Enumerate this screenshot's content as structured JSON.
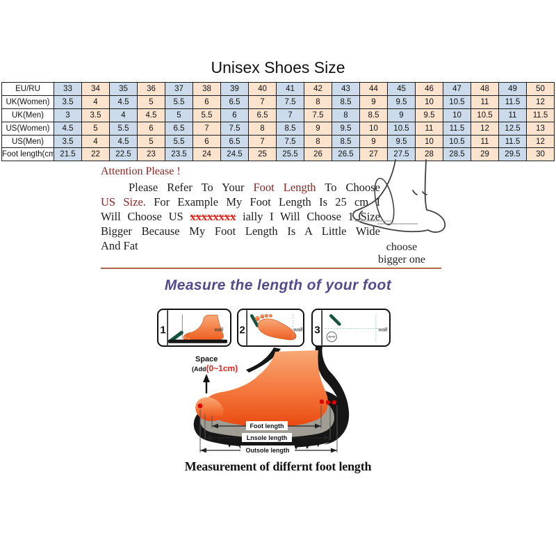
{
  "page": {
    "title": "Unisex Shoes Size"
  },
  "size_table": {
    "rows": [
      {
        "label": "EU/RU",
        "values": [
          "33",
          "34",
          "35",
          "36",
          "37",
          "38",
          "39",
          "40",
          "41",
          "42",
          "43",
          "44",
          "45",
          "46",
          "47",
          "48",
          "49",
          "50"
        ]
      },
      {
        "label": "UK(Women)",
        "values": [
          "3.5",
          "4",
          "4.5",
          "5",
          "5.5",
          "6",
          "6.5",
          "7",
          "7.5",
          "8",
          "8.5",
          "9",
          "9.5",
          "10",
          "10.5",
          "11",
          "11.5",
          "12"
        ]
      },
      {
        "label": "UK(Men)",
        "values": [
          "3",
          "3.5",
          "4",
          "4.5",
          "5",
          "5.5",
          "6",
          "6.5",
          "7",
          "7.5",
          "8",
          "8.5",
          "9",
          "9.5",
          "10",
          "10.5",
          "11",
          "11.5"
        ]
      },
      {
        "label": "US(Women)",
        "values": [
          "4.5",
          "5",
          "5.5",
          "6",
          "6.5",
          "7",
          "7.5",
          "8",
          "8.5",
          "9",
          "9.5",
          "10",
          "10.5",
          "11",
          "11.5",
          "12",
          "12.5",
          "13"
        ]
      },
      {
        "label": "US(Men)",
        "values": [
          "3.5",
          "4",
          "4.5",
          "5",
          "5.5",
          "6",
          "6.5",
          "7",
          "7.5",
          "8",
          "8.5",
          "9",
          "9.5",
          "10",
          "10.5",
          "11",
          "11.5",
          "12"
        ]
      },
      {
        "label": "Foot length(cm)",
        "values": [
          "21.5",
          "22",
          "22.5",
          "23",
          "23.5",
          "24",
          "24.5",
          "25",
          "25.5",
          "26",
          "26.5",
          "27",
          "27.5",
          "28",
          "28.5",
          "29",
          "29.5",
          "30"
        ]
      }
    ]
  },
  "attention": {
    "heading": "Attention Please !",
    "l1a": "Please Refer To Your ",
    "l1b": "Foot Length",
    "l1c": " To Choose",
    "l2a": "US Size.",
    "l2b": " For Example My Foot Length Is 25 cm I",
    "l3a": "Will Choose US ",
    "l3b": "xxxxxxxx",
    "l3c": " ially I Will Choose 1 Size",
    "l4": "Bigger Because My Foot Length Is A Little Wide",
    "l5": "And Fat"
  },
  "choose_note": {
    "line1": "choose",
    "line2": "bigger one"
  },
  "measure_heading": "Measure the length of your foot",
  "measure_steps": {
    "items": [
      {
        "number": "1",
        "wall_label": "wall"
      },
      {
        "number": "2",
        "wall_label": "wall"
      },
      {
        "number": "3",
        "wall_label": "wall"
      }
    ]
  },
  "foot_diagram": {
    "space_label": "Space",
    "space_sub_black": "(Add",
    "space_sub_red": "(0~1cm)",
    "dims": [
      "Foot length",
      "Lnsole length",
      "Outsole length"
    ]
  },
  "caption": "Measurement of differnt foot length",
  "colors": {
    "table_col_blue": "#cbdbeb",
    "table_col_peach": "#fbe3cd",
    "dark_red": "#8c2420",
    "bright_red": "#e2231a",
    "purple": "#564a8e",
    "divider_brown": "#b0654f",
    "foot_orange": "#f4753a",
    "foot_orange_dark": "#e8490f",
    "marker_green": "#14523f",
    "dotted_blue": "#9cc8da"
  }
}
